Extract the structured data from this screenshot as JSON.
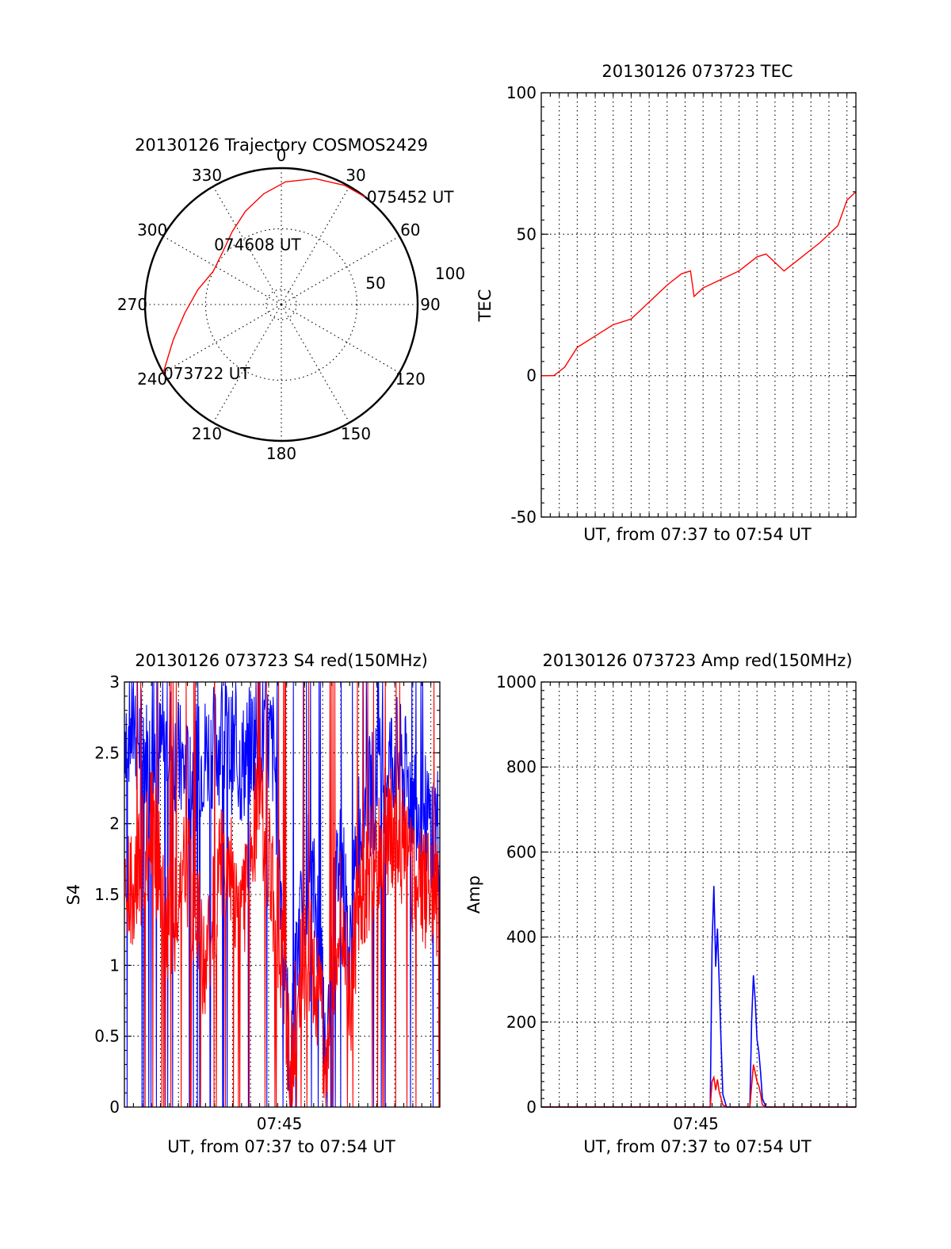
{
  "chart_data": [
    {
      "panel": "polar-trajectory",
      "type": "scatter",
      "title": "20130126 Trajectory COSMOS2429",
      "azimuth_labels": [
        "0",
        "30",
        "60",
        "90",
        "120",
        "150",
        "180",
        "210",
        "240",
        "270",
        "300",
        "330"
      ],
      "radial_labels": [
        "50",
        "100"
      ],
      "track": {
        "color": "#ff0000",
        "points": [
          {
            "az": 240,
            "el": 0
          },
          {
            "az": 252,
            "el": 15
          },
          {
            "az": 265,
            "el": 26
          },
          {
            "az": 280,
            "el": 34
          },
          {
            "az": 296,
            "el": 40
          },
          {
            "az": 312,
            "el": 38
          },
          {
            "az": 326,
            "el": 32
          },
          {
            "az": 339,
            "el": 24
          },
          {
            "az": 351,
            "el": 16
          },
          {
            "az": 2,
            "el": 9
          },
          {
            "az": 15,
            "el": 4
          },
          {
            "az": 28,
            "el": 1
          },
          {
            "az": 38,
            "el": 0
          }
        ]
      },
      "annotations": [
        {
          "text": "073722 UT",
          "az": 240,
          "el": 0
        },
        {
          "text": "074608 UT",
          "az": 312,
          "el": 38
        },
        {
          "text": "075452 UT",
          "az": 38,
          "el": 0
        }
      ]
    },
    {
      "panel": "tec",
      "type": "line",
      "title": "20130126 073723 TEC",
      "xlabel": "UT, from 07:37 to 07:54 UT",
      "ylabel": "TEC",
      "xlim": [
        0,
        17.5
      ],
      "ylim": [
        -50,
        100
      ],
      "yticks": [
        -50,
        0,
        50,
        100
      ],
      "grid": true,
      "series": [
        {
          "color": "#ff0000",
          "x": [
            0,
            0.7,
            1.3,
            2.0,
            3.0,
            4.0,
            5.0,
            6.0,
            7.0,
            7.8,
            8.3,
            8.5,
            9.0,
            10.0,
            11.0,
            12.0,
            12.5,
            13.5,
            14.5,
            15.5,
            16.5,
            17.0,
            17.5
          ],
          "y": [
            0,
            0,
            3,
            10,
            14,
            18,
            20,
            26,
            32,
            36,
            37,
            28,
            31,
            34,
            37,
            42,
            43,
            37,
            42,
            47,
            53,
            62,
            65
          ]
        }
      ]
    },
    {
      "panel": "s4",
      "type": "line",
      "title": "20130126 073723 S4 red(150MHz)",
      "xlabel": "UT, from 07:37 to 07:54 UT",
      "ylabel": "S4",
      "xlim": [
        0,
        17.5
      ],
      "ylim": [
        0,
        3
      ],
      "yticks": [
        "0",
        "0.5",
        "1",
        "1.5",
        "2",
        "2.5",
        "3"
      ],
      "xticks": [
        {
          "value": 8.6,
          "label": "07:45"
        }
      ],
      "grid": true,
      "series": [
        {
          "color": "#0000ff",
          "x": [
            0.5,
            1.5,
            2.5,
            3.5,
            4.5,
            5.5,
            6.5,
            7.5,
            8.3,
            8.8,
            9.2,
            9.6,
            10.2,
            10.8,
            11.2,
            11.6,
            12.0,
            12.5,
            13.0,
            14.0,
            15.0,
            16.0,
            17.0
          ],
          "y": [
            2.7,
            2.4,
            2.6,
            2.3,
            2.5,
            2.6,
            2.4,
            2.7,
            2.5,
            1.3,
            0.2,
            1.1,
            1.7,
            1.3,
            0.1,
            1.3,
            1.9,
            1.0,
            2.0,
            2.3,
            2.5,
            2.2,
            2.0
          ]
        },
        {
          "color": "#ff0000",
          "x": [
            0.5,
            1.5,
            2.5,
            3.5,
            4.5,
            5.5,
            6.5,
            7.5,
            8.3,
            8.8,
            9.2,
            9.6,
            10.2,
            10.8,
            11.2,
            11.6,
            12.0,
            12.5,
            13.0,
            14.0,
            15.0,
            16.0,
            17.0
          ],
          "y": [
            1.5,
            2.0,
            1.2,
            1.7,
            1.0,
            1.8,
            1.4,
            2.2,
            1.5,
            1.0,
            0.2,
            0.8,
            1.1,
            0.8,
            0.25,
            0.9,
            1.4,
            0.7,
            1.5,
            1.8,
            2.0,
            1.6,
            1.5
          ]
        }
      ]
    },
    {
      "panel": "amp",
      "type": "line",
      "title": "20130126 073723 Amp red(150MHz)",
      "xlabel": "UT, from 07:37 to 07:54 UT",
      "ylabel": "Amp",
      "xlim": [
        0,
        17.5
      ],
      "ylim": [
        0,
        1000
      ],
      "yticks": [
        0,
        200,
        400,
        600,
        800,
        1000
      ],
      "xticks": [
        {
          "value": 8.6,
          "label": "07:45"
        }
      ],
      "grid": true,
      "series": [
        {
          "color": "#0000ff",
          "x": [
            0,
            9.2,
            9.4,
            9.5,
            9.6,
            9.7,
            9.8,
            9.9,
            10.0,
            10.1,
            10.3,
            11.4,
            11.6,
            11.7,
            11.8,
            11.9,
            12.0,
            12.1,
            12.2,
            12.3,
            12.5,
            17.5
          ],
          "y": [
            0,
            0,
            0,
            380,
            520,
            330,
            420,
            290,
            150,
            30,
            0,
            0,
            0,
            200,
            310,
            250,
            160,
            130,
            80,
            20,
            0,
            0
          ]
        },
        {
          "color": "#ff0000",
          "x": [
            0,
            9.2,
            9.4,
            9.5,
            9.6,
            9.7,
            9.8,
            9.9,
            10.0,
            10.1,
            10.3,
            11.4,
            11.6,
            11.7,
            11.8,
            11.9,
            12.0,
            12.1,
            12.2,
            12.3,
            12.5,
            17.5
          ],
          "y": [
            0,
            0,
            0,
            60,
            70,
            40,
            65,
            35,
            20,
            5,
            0,
            0,
            0,
            50,
            100,
            80,
            60,
            50,
            30,
            5,
            0,
            0
          ]
        }
      ]
    }
  ]
}
